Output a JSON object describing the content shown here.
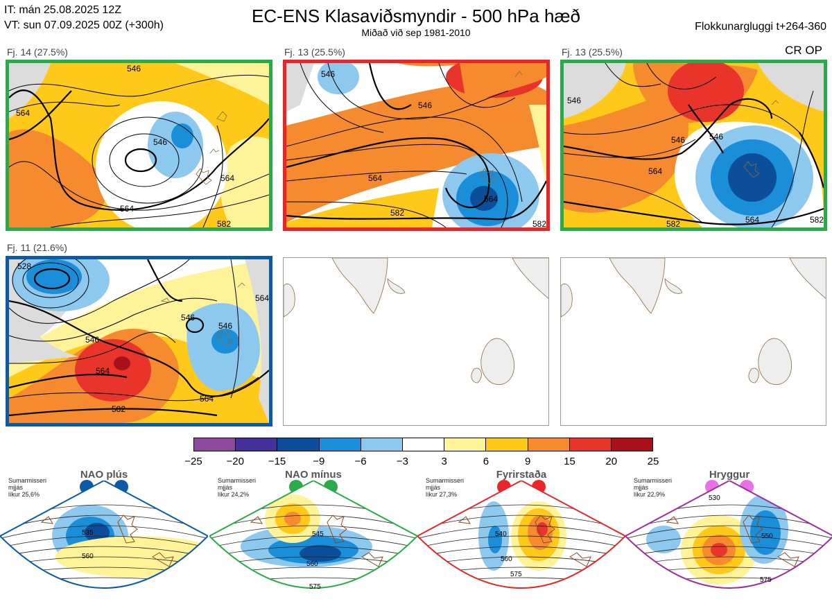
{
  "header": {
    "it_line": "IT: mán 25.08.2025 12Z",
    "vt_line": "VT: sun 07.09.2025 00Z  (+300h)",
    "title": "EC-ENS Klasaviðsmyndir - 500 hPa hæð",
    "subtitle": "Miðað við sep 1981-2010",
    "window": "Flokkunargluggi t+264-360",
    "cr_op": "CR OP"
  },
  "panels": [
    {
      "label": "Fj. 14 (27.5%)",
      "border": "#2aaa4a",
      "contour_labels": [
        "546",
        "546",
        "564",
        "564",
        "564",
        "582"
      ]
    },
    {
      "label": "Fj. 13 (25.5%)",
      "border": "#e8262a",
      "contour_labels": [
        "546",
        "546",
        "564",
        "564",
        "582",
        "582"
      ]
    },
    {
      "label": "Fj. 13 (25.5%)",
      "border": "#2aaa4a",
      "contour_labels": [
        "546",
        "546",
        "546",
        "564",
        "564",
        "582",
        "582"
      ]
    },
    {
      "label": "Fj. 11 (21.6%)",
      "border": "#0b5aa6",
      "contour_labels": [
        "528",
        "546",
        "546",
        "546",
        "564",
        "564",
        "564",
        "582"
      ]
    }
  ],
  "colorbar": {
    "ticks": [
      "−25",
      "−20",
      "−15",
      "−9",
      "−6",
      "−3",
      "3",
      "6",
      "9",
      "15",
      "20",
      "25"
    ],
    "colors": [
      "#8c4a9c",
      "#45309a",
      "#0b4f9a",
      "#1a8ed8",
      "#8dc8ef",
      "#ffffff",
      "#fff39a",
      "#ffc91a",
      "#f58a2e",
      "#e8342a",
      "#a8101c"
    ]
  },
  "regimes": [
    {
      "name": "NAO plús",
      "season": "Sumarmisseri",
      "smooth": "mjjás",
      "prob": "líkur 25,6%",
      "color": "#0b5aa6",
      "contour_labels": [
        "535",
        "560"
      ]
    },
    {
      "name": "NAO mínus",
      "season": "Sumarmisseri",
      "smooth": "mjjás",
      "prob": "líkur 24,2%",
      "color": "#2aaa4a",
      "contour_labels": [
        "545",
        "560",
        "575"
      ]
    },
    {
      "name": "Fyrirstaða",
      "season": "Sumarmisseri",
      "smooth": "mjjás",
      "prob": "líkur 27,3%",
      "color": "#e8262a",
      "contour_labels": [
        "540",
        "560",
        "575"
      ]
    },
    {
      "name": "Hryggur",
      "season": "Sumarmisseri",
      "smooth": "mjjás",
      "prob": "líkur 22,9%",
      "color": "#9b2f9b",
      "dot_color": "#ea6fe8",
      "contour_labels": [
        "530",
        "550",
        "575"
      ]
    }
  ]
}
